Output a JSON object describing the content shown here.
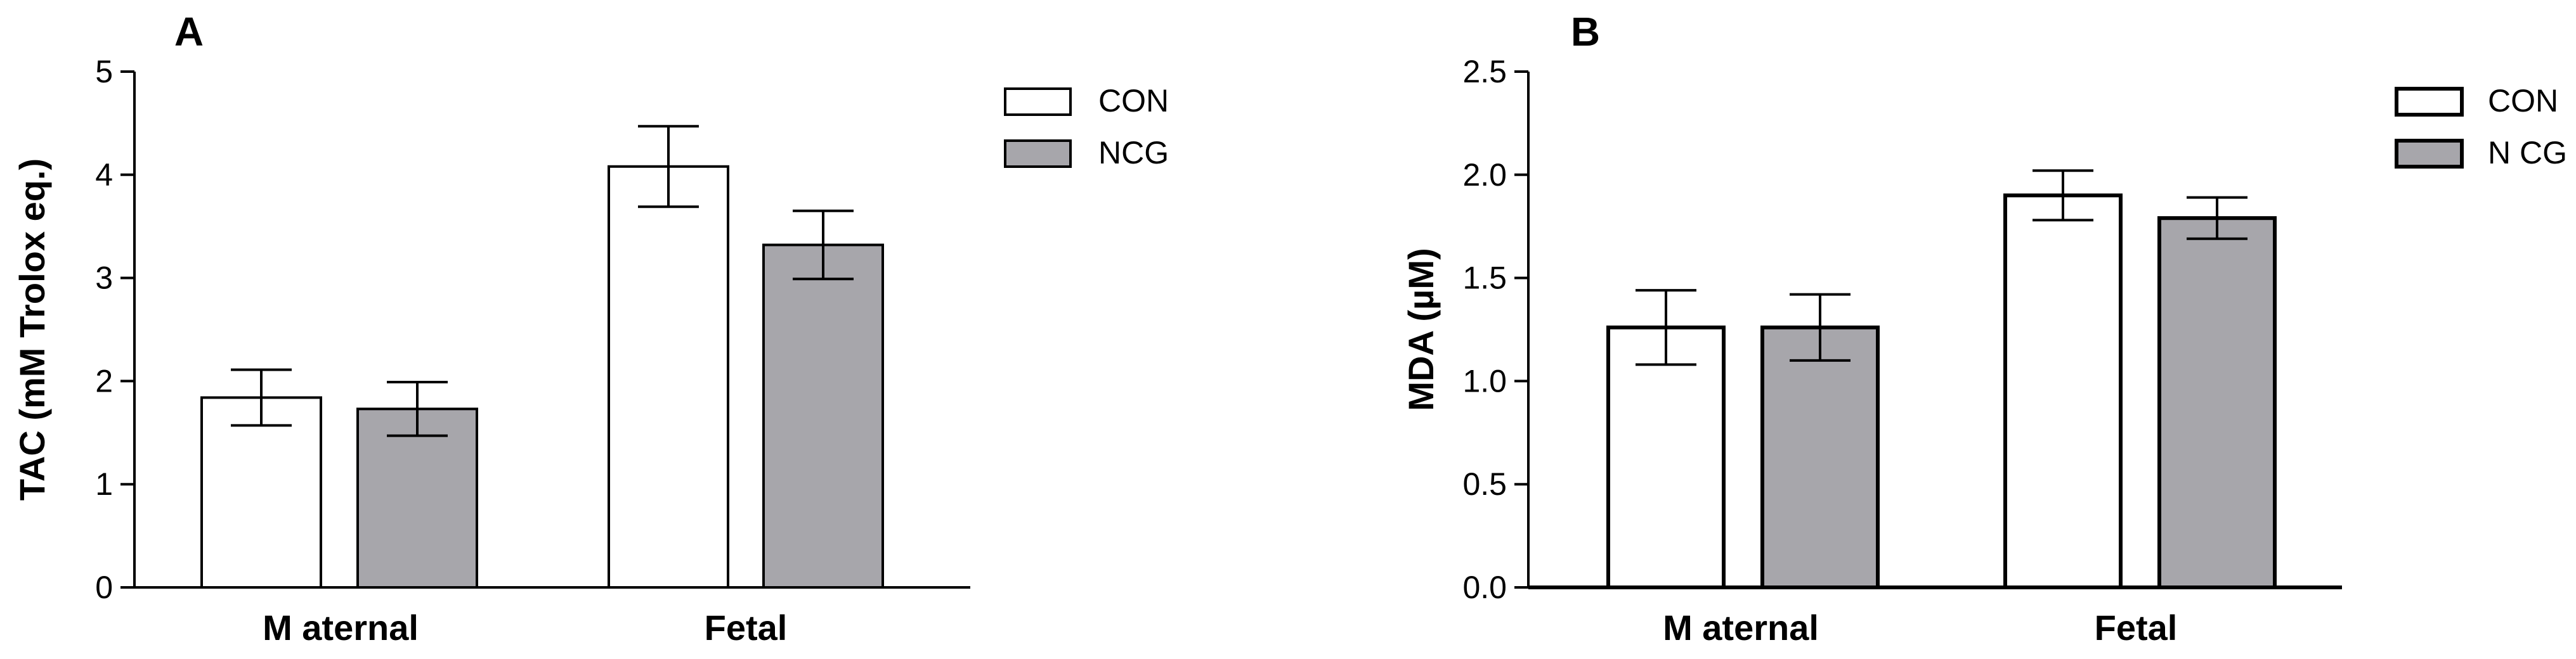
{
  "chart_data": [
    {
      "type": "bar",
      "panel_label": "A",
      "categories": [
        "M aternal",
        "Fetal"
      ],
      "series": [
        {
          "name": "CON",
          "values": [
            1.84,
            4.08
          ],
          "errors": [
            0.27,
            0.39
          ],
          "color": "#ffffff"
        },
        {
          "name": "NCG",
          "values": [
            1.73,
            3.32
          ],
          "errors": [
            0.26,
            0.33
          ],
          "color": "#a7a6ab"
        }
      ],
      "ylabel": "TAC (mM Trolox eq.)",
      "ylim": [
        0,
        5
      ],
      "yticks": [
        "0",
        "1",
        "2",
        "3",
        "4",
        "5"
      ],
      "grid": false,
      "legend_position": "top-right"
    },
    {
      "type": "bar",
      "panel_label": "B",
      "categories": [
        "M aternal",
        "Fetal"
      ],
      "series": [
        {
          "name": "CON",
          "values": [
            1.26,
            1.9
          ],
          "errors": [
            0.18,
            0.12
          ],
          "color": "#ffffff"
        },
        {
          "name": "N CG",
          "values": [
            1.26,
            1.79
          ],
          "errors": [
            0.16,
            0.1
          ],
          "color": "#a7a6ab"
        }
      ],
      "ylabel": "MDA (µM)",
      "ylim": [
        0,
        2.5
      ],
      "yticks": [
        "0.0",
        "0.5",
        "1.0",
        "1.5",
        "2.0",
        "2.5"
      ],
      "grid": false,
      "legend_position": "top-right"
    }
  ]
}
